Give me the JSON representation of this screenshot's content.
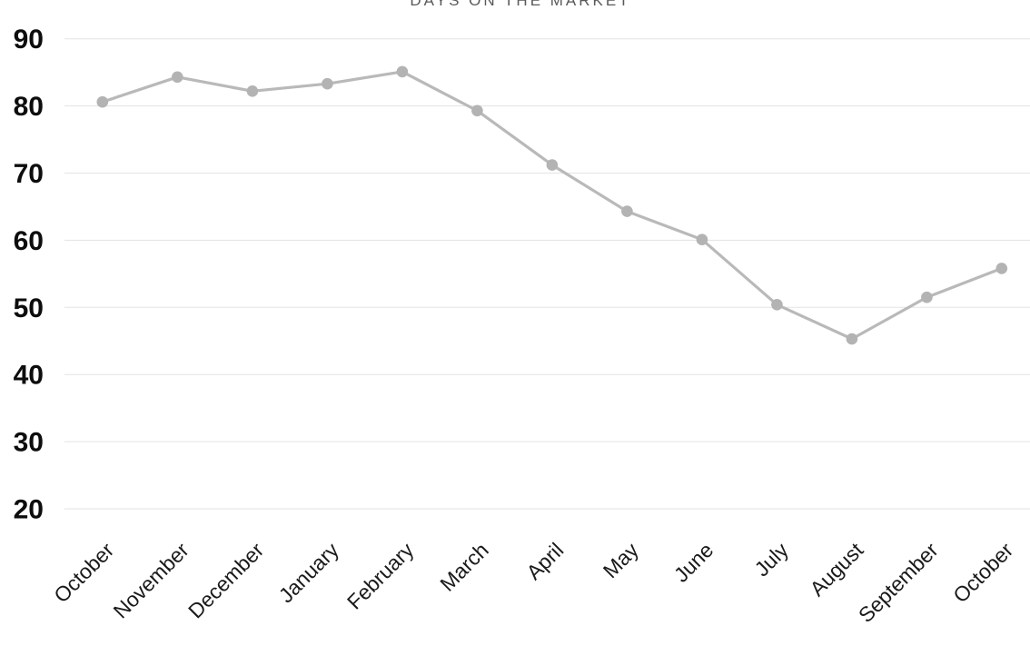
{
  "chart_data": {
    "type": "line",
    "title": "DAYS ON THE MARKET",
    "categories": [
      "October",
      "November",
      "December",
      "January",
      "February",
      "March",
      "April",
      "May",
      "June",
      "July",
      "August",
      "September",
      "October"
    ],
    "values": [
      80.6,
      84.3,
      82.2,
      83.3,
      85.1,
      79.3,
      71.2,
      64.3,
      60.1,
      50.4,
      45.3,
      51.5,
      55.8
    ],
    "xlabel": "",
    "ylabel": "",
    "ylim": [
      20,
      90
    ],
    "ytick_step": 10,
    "ytick_labels": [
      "20",
      "30",
      "40",
      "50",
      "60",
      "70",
      "80",
      "90"
    ],
    "grid": "horizontal",
    "legend": "none",
    "marker": "circle",
    "colors": {
      "line": "#b9b9b9",
      "marker": "#b3b3b3",
      "gridline": "#e3e3e3",
      "y_tick_label": "#0d0d0d",
      "x_tick_label": "#1a1a1a",
      "title": "#595959",
      "background": "#ffffff"
    }
  }
}
